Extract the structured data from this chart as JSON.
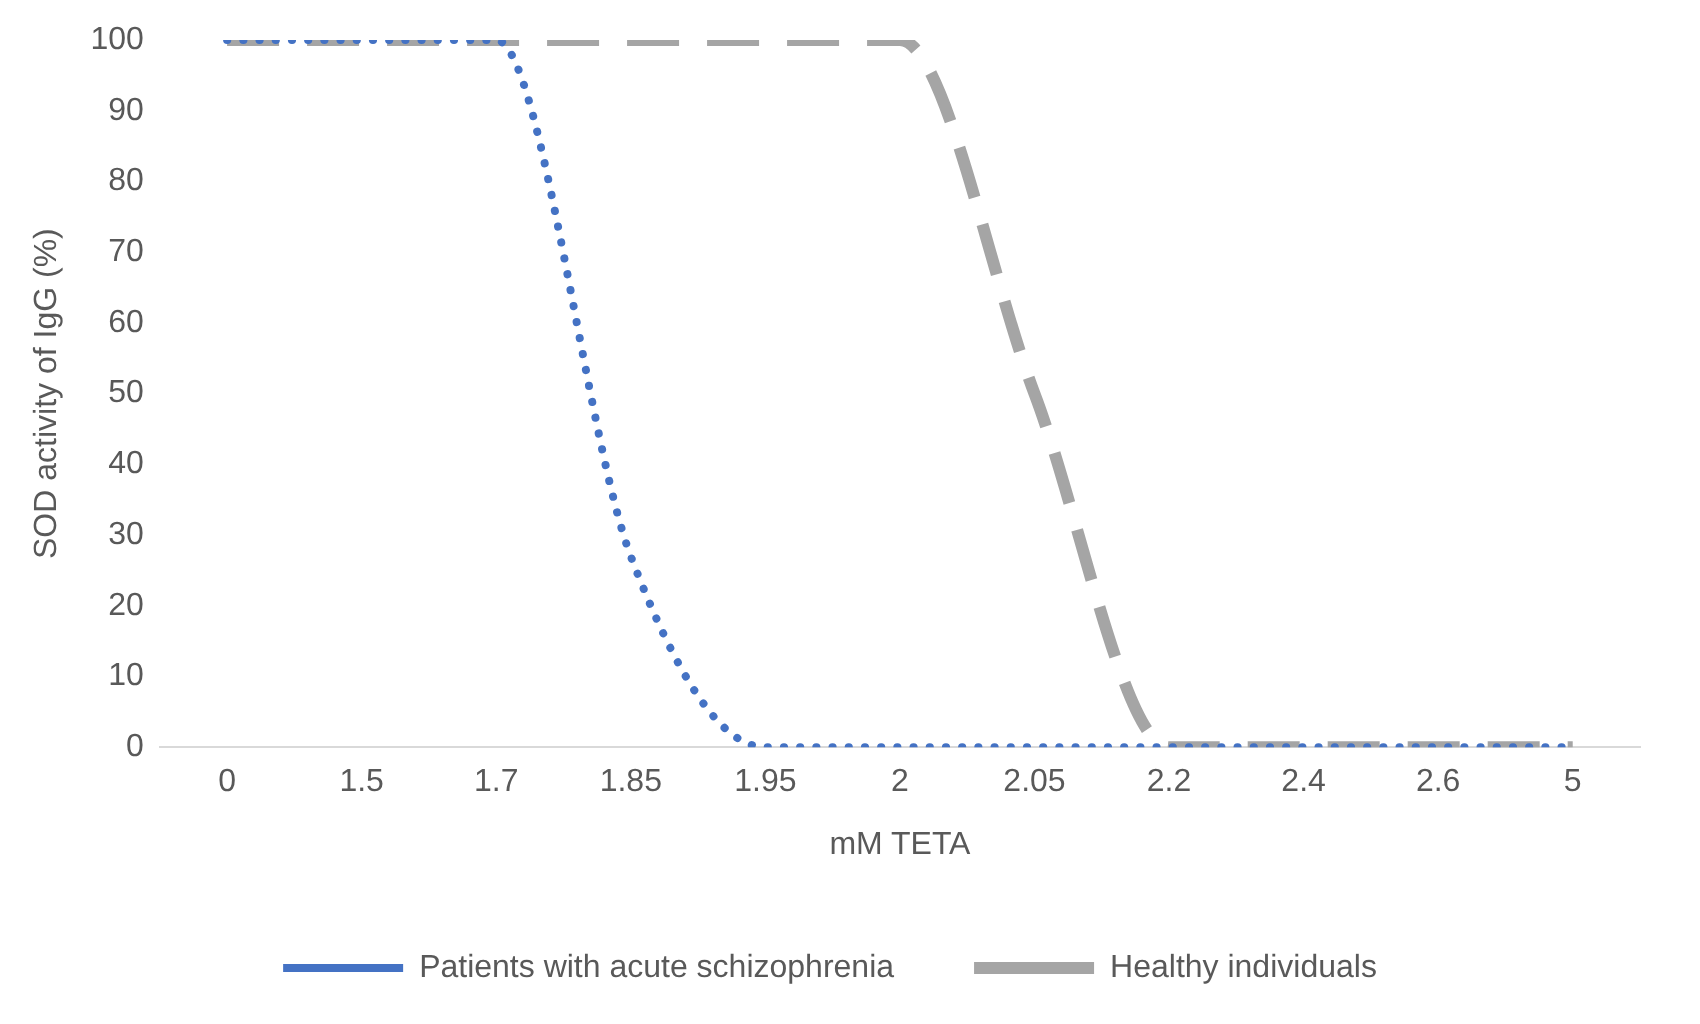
{
  "chart_data": {
    "type": "line",
    "xlabel": "mM TETA",
    "ylabel": "SOD activity of IgG (%)",
    "categories": [
      "0",
      "1.5",
      "1.7",
      "1.85",
      "1.95",
      "2",
      "2.05",
      "2.2",
      "2.4",
      "2.6",
      "5"
    ],
    "series": [
      {
        "name": "Patients with acute schizophrenia",
        "color": "#4472c4",
        "line_style": "dotted",
        "values": [
          100,
          100,
          100,
          27,
          0,
          0,
          0,
          0,
          0,
          0,
          0
        ]
      },
      {
        "name": "Healthy individuals",
        "color": "#a5a5a5",
        "line_style": "dashed",
        "values": [
          100,
          100,
          100,
          100,
          100,
          100,
          50,
          0,
          0,
          0,
          0
        ]
      }
    ],
    "ylim": [
      0,
      100
    ],
    "yticks": [
      0,
      10,
      20,
      30,
      40,
      50,
      60,
      70,
      80,
      90,
      100
    ],
    "grid": false,
    "legend": "bottom",
    "marker": "none"
  }
}
